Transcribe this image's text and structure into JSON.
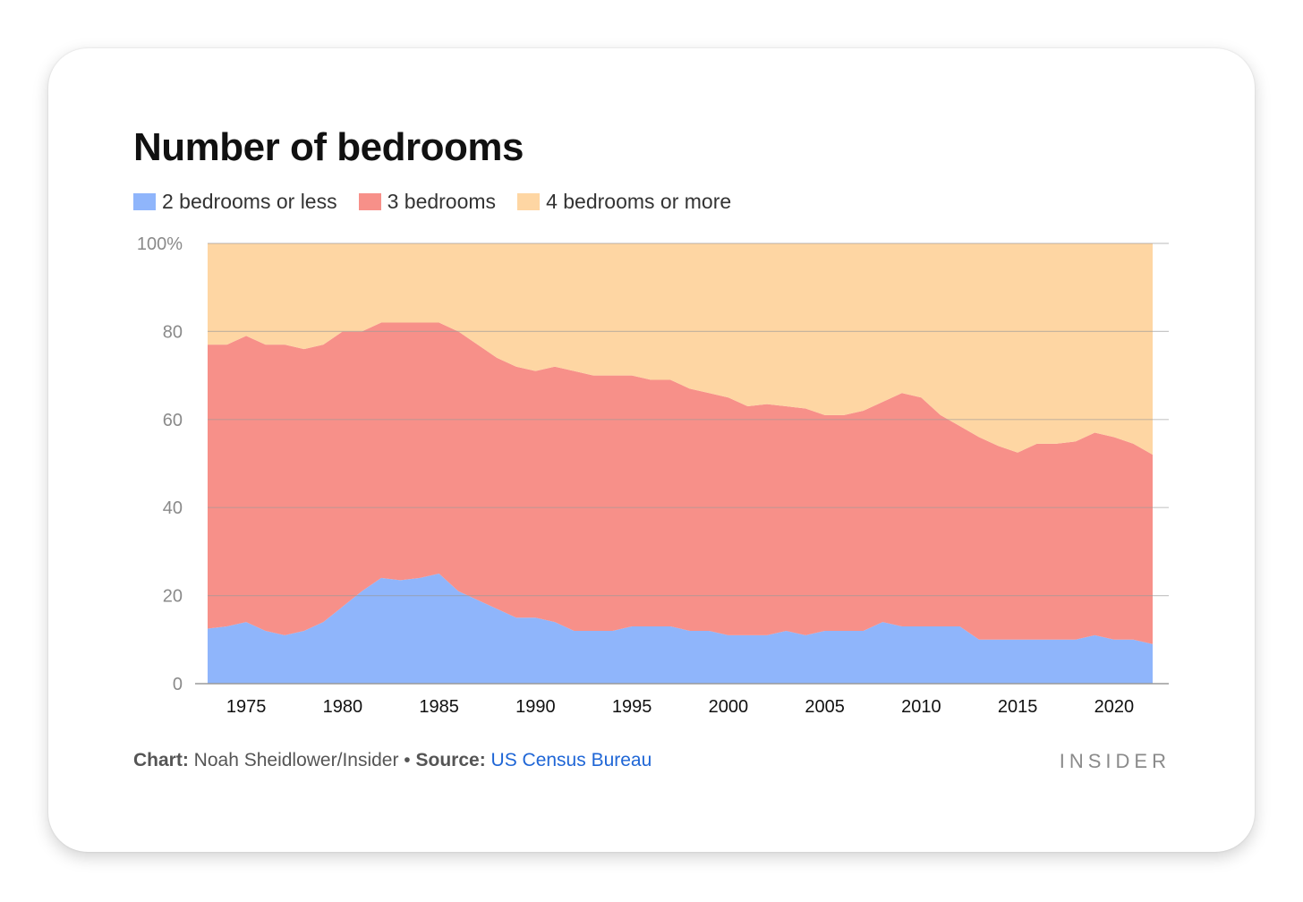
{
  "chart_data": {
    "type": "area",
    "stacked": true,
    "title": "Number of bedrooms",
    "ylim": [
      0,
      100
    ],
    "y_ticks": [
      "0",
      "20",
      "40",
      "60",
      "80",
      "100%"
    ],
    "y_tick_values": [
      0,
      20,
      40,
      60,
      80,
      100
    ],
    "x_ticks": [
      1975,
      1980,
      1985,
      1990,
      1995,
      2000,
      2005,
      2010,
      2015,
      2020
    ],
    "grid": true,
    "legend_position": "top-left",
    "x": [
      1973,
      1974,
      1975,
      1976,
      1977,
      1978,
      1979,
      1980,
      1981,
      1982,
      1983,
      1984,
      1985,
      1986,
      1987,
      1988,
      1989,
      1990,
      1991,
      1992,
      1993,
      1994,
      1995,
      1996,
      1997,
      1998,
      1999,
      2000,
      2001,
      2002,
      2003,
      2004,
      2005,
      2006,
      2007,
      2008,
      2009,
      2010,
      2011,
      2012,
      2013,
      2014,
      2015,
      2016,
      2017,
      2018,
      2019,
      2020,
      2021,
      2022
    ],
    "series": [
      {
        "name": "2 bedrooms or less",
        "color": "#8fb5fb",
        "values": [
          12.5,
          13,
          14,
          12,
          11,
          12,
          14,
          17.5,
          21,
          24,
          23.5,
          24,
          25,
          21,
          19,
          17,
          15,
          15,
          14,
          12,
          12,
          12,
          13,
          13,
          13,
          12,
          12,
          11,
          11,
          11,
          12,
          11,
          12,
          12,
          12,
          14,
          13,
          13,
          13,
          13,
          10,
          10,
          10,
          10,
          10,
          10,
          11,
          10,
          10,
          9
        ]
      },
      {
        "name": "3 bedrooms",
        "color": "#f79089",
        "values": [
          64.5,
          64,
          65,
          65,
          66,
          64,
          63,
          62.5,
          59,
          58,
          58.5,
          58,
          57,
          59,
          58,
          57,
          57,
          56,
          58,
          59,
          58,
          58,
          57,
          56,
          56,
          55,
          54,
          54,
          52,
          52.5,
          51,
          51.5,
          49,
          49,
          50,
          50,
          53,
          52,
          48,
          45.5,
          46,
          44,
          42.5,
          44.5,
          44.5,
          45,
          46,
          46,
          44.5,
          43
        ]
      },
      {
        "name": "4 bedrooms or more",
        "color": "#fed6a3",
        "values": [
          23,
          23,
          21,
          23,
          23,
          24,
          23,
          20,
          20,
          18,
          18,
          18,
          18,
          20,
          23,
          26,
          28,
          29,
          28,
          29,
          30,
          30,
          30,
          31,
          31,
          33,
          34,
          35,
          37,
          36.5,
          37,
          37.5,
          39,
          39,
          38,
          36,
          34,
          35,
          39,
          41.5,
          44,
          46,
          47.5,
          45.5,
          45.5,
          45,
          43,
          44,
          45.5,
          48
        ]
      }
    ]
  },
  "footer": {
    "chart_label": "Chart:",
    "chart_author": " Noah Sheidlower/Insider • ",
    "source_label": "Source:",
    "source_name": " US Census Bureau"
  },
  "brand": "INSIDER"
}
